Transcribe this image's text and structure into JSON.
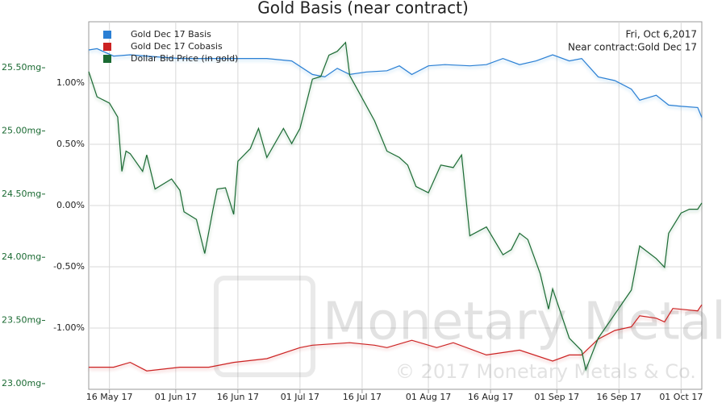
{
  "chart_data": {
    "type": "line",
    "title": "Gold Basis (near contract)",
    "annotations": [
      "Fri, Oct 6,2017",
      "Near contract:Gold Dec 17"
    ],
    "watermark": [
      "Monetary Metals",
      "© 2017 Monetary Metals & Co."
    ],
    "xlim": [
      "2017-05-11",
      "2017-10-06"
    ],
    "xticks": [
      {
        "value": "2017-05-16",
        "label": "16 May 17"
      },
      {
        "value": "2017-06-01",
        "label": "01 Jun 17"
      },
      {
        "value": "2017-06-16",
        "label": "16 Jun 17"
      },
      {
        "value": "2017-07-01",
        "label": "01 Jul 17"
      },
      {
        "value": "2017-07-16",
        "label": "16 Jul 17"
      },
      {
        "value": "2017-08-01",
        "label": "01 Aug 17"
      },
      {
        "value": "2017-08-16",
        "label": "16 Aug 17"
      },
      {
        "value": "2017-09-01",
        "label": "01 Sep 17"
      },
      {
        "value": "2017-09-16",
        "label": "16 Sep 17"
      },
      {
        "value": "2017-10-01",
        "label": "01 Oct 17"
      }
    ],
    "ylim": [
      -1.5,
      1.5
    ],
    "yticks": [
      {
        "value": 1.0,
        "label": "1.00%"
      },
      {
        "value": 0.5,
        "label": "0.50%"
      },
      {
        "value": 0,
        "label": "0.00%"
      },
      {
        "value": -0.5,
        "label": "-0.50%"
      },
      {
        "value": -1.0,
        "label": "-1.00%"
      }
    ],
    "y2lim": [
      22.955,
      25.864
    ],
    "y2ticks": [
      {
        "value": 25.5,
        "label": "25.50mg"
      },
      {
        "value": 25.0,
        "label": "25.00mg"
      },
      {
        "value": 24.5,
        "label": "24.50mg"
      },
      {
        "value": 24.0,
        "label": "24.00mg"
      },
      {
        "value": 23.5,
        "label": "23.50mg"
      },
      {
        "value": 23.0,
        "label": "23.00mg"
      }
    ],
    "grid": true,
    "legend": "top-left",
    "series": [
      {
        "name": "Gold Dec 17 Basis",
        "color": "#2a7fd4",
        "x": [
          "2017-05-11",
          "2017-05-13",
          "2017-05-17",
          "2017-05-21",
          "2017-05-25",
          "2017-06-02",
          "2017-06-09",
          "2017-06-17",
          "2017-06-23",
          "2017-06-29",
          "2017-07-04",
          "2017-07-07",
          "2017-07-10",
          "2017-07-13",
          "2017-07-17",
          "2017-07-22",
          "2017-07-25",
          "2017-07-28",
          "2017-08-01",
          "2017-08-05",
          "2017-08-11",
          "2017-08-15",
          "2017-08-19",
          "2017-08-23",
          "2017-08-27",
          "2017-08-31",
          "2017-09-04",
          "2017-09-07",
          "2017-09-11",
          "2017-09-15",
          "2017-09-19",
          "2017-09-21",
          "2017-09-25",
          "2017-09-28",
          "2017-10-01",
          "2017-10-05",
          "2017-10-06"
        ],
        "values": [
          1.27,
          1.28,
          1.22,
          1.23,
          1.22,
          1.2,
          1.2,
          1.2,
          1.2,
          1.18,
          1.07,
          1.05,
          1.12,
          1.07,
          1.09,
          1.1,
          1.14,
          1.07,
          1.14,
          1.15,
          1.14,
          1.15,
          1.2,
          1.15,
          1.18,
          1.23,
          1.18,
          1.2,
          1.05,
          1.02,
          0.95,
          0.86,
          0.9,
          0.82,
          0.81,
          0.8,
          0.72
        ]
      },
      {
        "name": "Gold Dec 17 Cobasis",
        "color": "#cc2222",
        "x": [
          "2017-05-11",
          "2017-05-17",
          "2017-05-21",
          "2017-05-25",
          "2017-06-02",
          "2017-06-09",
          "2017-06-15",
          "2017-06-23",
          "2017-07-01",
          "2017-07-04",
          "2017-07-13",
          "2017-07-19",
          "2017-07-22",
          "2017-07-28",
          "2017-08-03",
          "2017-08-07",
          "2017-08-15",
          "2017-08-23",
          "2017-08-31",
          "2017-09-04",
          "2017-09-07",
          "2017-09-11",
          "2017-09-15",
          "2017-09-19",
          "2017-09-21",
          "2017-09-25",
          "2017-09-27",
          "2017-09-29",
          "2017-10-05",
          "2017-10-06"
        ],
        "values": [
          -1.32,
          -1.32,
          -1.28,
          -1.35,
          -1.32,
          -1.32,
          -1.28,
          -1.25,
          -1.16,
          -1.14,
          -1.12,
          -1.14,
          -1.16,
          -1.1,
          -1.16,
          -1.12,
          -1.22,
          -1.18,
          -1.27,
          -1.22,
          -1.22,
          -1.09,
          -1.02,
          -0.99,
          -0.9,
          -0.92,
          -0.95,
          -0.84,
          -0.86,
          -0.81
        ]
      },
      {
        "name": "Dollar Bid Price (in gold)",
        "color": "#1a6a32",
        "axis": "y2",
        "x": [
          "2017-05-11",
          "2017-05-13",
          "2017-05-16",
          "2017-05-18",
          "2017-05-19",
          "2017-05-20",
          "2017-05-21",
          "2017-05-24",
          "2017-05-25",
          "2017-05-27",
          "2017-05-31",
          "2017-06-02",
          "2017-06-03",
          "2017-06-06",
          "2017-06-08",
          "2017-06-10",
          "2017-06-11",
          "2017-06-13",
          "2017-06-15",
          "2017-06-16",
          "2017-06-19",
          "2017-06-21",
          "2017-06-23",
          "2017-06-27",
          "2017-06-29",
          "2017-07-01",
          "2017-07-04",
          "2017-07-06",
          "2017-07-08",
          "2017-07-10",
          "2017-07-12",
          "2017-07-13",
          "2017-07-15",
          "2017-07-19",
          "2017-07-22",
          "2017-07-25",
          "2017-07-27",
          "2017-07-29",
          "2017-08-01",
          "2017-08-04",
          "2017-08-07",
          "2017-08-09",
          "2017-08-11",
          "2017-08-15",
          "2017-08-19",
          "2017-08-21",
          "2017-08-23",
          "2017-08-25",
          "2017-08-28",
          "2017-08-30",
          "2017-08-31",
          "2017-09-04",
          "2017-09-07",
          "2017-09-08",
          "2017-09-11",
          "2017-09-15",
          "2017-09-19",
          "2017-09-21",
          "2017-09-25",
          "2017-09-27",
          "2017-09-28",
          "2017-10-01",
          "2017-10-03",
          "2017-10-05",
          "2017-10-06"
        ],
        "values": [
          25.47,
          25.27,
          25.22,
          25.11,
          24.68,
          24.84,
          24.82,
          24.68,
          24.81,
          24.54,
          24.62,
          24.53,
          24.36,
          24.3,
          24.03,
          24.38,
          24.54,
          24.55,
          24.34,
          24.76,
          24.86,
          25.02,
          24.79,
          25.02,
          24.9,
          25.02,
          25.41,
          25.43,
          25.6,
          25.63,
          25.7,
          25.44,
          25.32,
          25.08,
          24.84,
          24.79,
          24.73,
          24.56,
          24.51,
          24.73,
          24.71,
          24.81,
          24.17,
          24.24,
          24.02,
          24.06,
          24.19,
          24.14,
          23.87,
          23.59,
          23.75,
          23.36,
          23.26,
          23.11,
          23.36,
          23.55,
          23.74,
          24.09,
          23.99,
          23.92,
          24.19,
          24.35,
          24.38,
          24.38,
          24.43
        ]
      }
    ]
  }
}
